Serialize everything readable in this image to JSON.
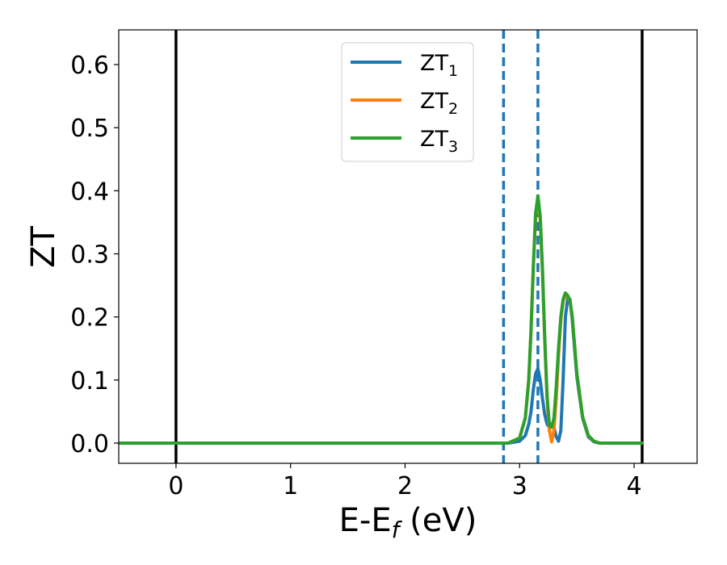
{
  "chart_data": {
    "type": "line",
    "title": "",
    "xlabel": {
      "main": "E-E",
      "subscript": "f",
      "suffix": " (eV)"
    },
    "ylabel": "ZT",
    "xlim": [
      -0.5,
      4.55
    ],
    "ylim": [
      -0.032,
      0.655
    ],
    "x_ticks": [
      0,
      1,
      2,
      3,
      4
    ],
    "x_tick_labels": [
      "0",
      "1",
      "2",
      "3",
      "4"
    ],
    "y_ticks": [
      0.0,
      0.1,
      0.2,
      0.3,
      0.4,
      0.5,
      0.6
    ],
    "y_tick_labels": [
      "0.0",
      "0.1",
      "0.2",
      "0.3",
      "0.4",
      "0.5",
      "0.6"
    ],
    "grid": false,
    "legend_position": "upper center",
    "vlines_solid": [
      0.0,
      4.07
    ],
    "vlines_dashed": [
      2.86,
      3.16
    ],
    "colors": {
      "zt1": "#1f77b4",
      "zt2": "#ff7f0e",
      "zt3": "#2ca02c",
      "solid_line": "#000000",
      "dashed_line": "#1f77b4"
    },
    "series": [
      {
        "name": "ZT",
        "name_subscript": "1",
        "color": "#1f77b4",
        "x": [
          -0.5,
          2.9,
          3.0,
          3.05,
          3.08,
          3.1,
          3.12,
          3.14,
          3.16,
          3.18,
          3.2,
          3.22,
          3.24,
          3.26,
          3.28,
          3.3,
          3.32,
          3.34,
          3.36,
          3.38,
          3.4,
          3.42,
          3.44,
          3.46,
          3.48,
          3.5,
          3.55,
          3.6,
          3.65,
          3.7,
          4.07
        ],
        "y": [
          0.0,
          0.0,
          0.003,
          0.012,
          0.03,
          0.05,
          0.085,
          0.11,
          0.118,
          0.1,
          0.07,
          0.045,
          0.03,
          0.025,
          0.03,
          0.025,
          0.01,
          0.003,
          0.02,
          0.1,
          0.2,
          0.23,
          0.228,
          0.195,
          0.15,
          0.105,
          0.04,
          0.01,
          0.002,
          0.0,
          0.0
        ]
      },
      {
        "name": "ZT",
        "name_subscript": "2",
        "color": "#ff7f0e",
        "x": [
          -0.5,
          2.9,
          3.0,
          3.05,
          3.08,
          3.1,
          3.12,
          3.14,
          3.16,
          3.18,
          3.2,
          3.22,
          3.24,
          3.26,
          3.28,
          3.3,
          3.32,
          3.34,
          3.36,
          3.38,
          3.4,
          3.42,
          3.44,
          3.46,
          3.48,
          3.5,
          3.55,
          3.6,
          3.65,
          3.7,
          4.07
        ],
        "y": [
          0.0,
          0.0,
          0.008,
          0.04,
          0.1,
          0.18,
          0.28,
          0.36,
          0.385,
          0.355,
          0.27,
          0.16,
          0.07,
          0.02,
          0.002,
          0.02,
          0.07,
          0.14,
          0.195,
          0.225,
          0.235,
          0.232,
          0.225,
          0.2,
          0.155,
          0.11,
          0.042,
          0.012,
          0.003,
          0.0,
          0.0
        ]
      },
      {
        "name": "ZT",
        "name_subscript": "3",
        "color": "#2ca02c",
        "x": [
          -0.5,
          2.9,
          3.0,
          3.05,
          3.08,
          3.1,
          3.12,
          3.14,
          3.16,
          3.18,
          3.2,
          3.22,
          3.24,
          3.26,
          3.28,
          3.3,
          3.32,
          3.34,
          3.36,
          3.38,
          3.4,
          3.42,
          3.44,
          3.46,
          3.48,
          3.5,
          3.55,
          3.6,
          3.65,
          3.7,
          4.07
        ],
        "y": [
          0.0,
          0.0,
          0.008,
          0.04,
          0.1,
          0.18,
          0.28,
          0.365,
          0.392,
          0.36,
          0.275,
          0.165,
          0.075,
          0.028,
          0.025,
          0.04,
          0.09,
          0.15,
          0.2,
          0.228,
          0.238,
          0.234,
          0.226,
          0.2,
          0.155,
          0.11,
          0.042,
          0.012,
          0.003,
          0.0,
          0.0
        ]
      }
    ]
  }
}
